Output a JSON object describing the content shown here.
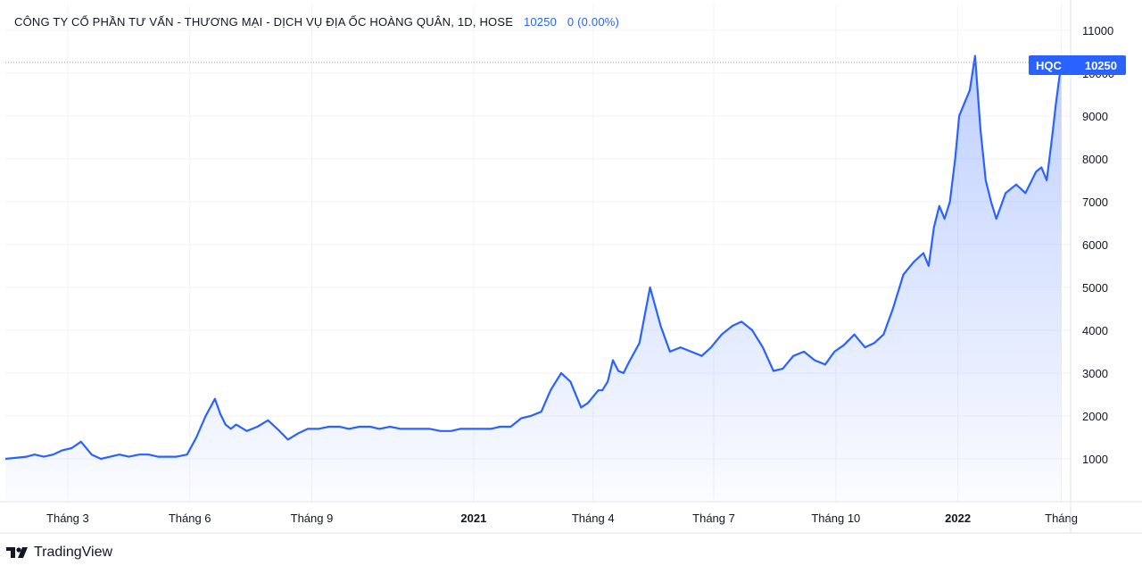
{
  "header": {
    "title": "CÔNG TY CỔ PHẦN TƯ VẤN - THƯƠNG MẠI - DỊCH VỤ ĐỊA ỐC HOÀNG QUÂN, 1D, HOSE",
    "last_price": "10250",
    "change": "0 (0.00%)"
  },
  "price_tag": {
    "symbol": "HQC",
    "value": "10250"
  },
  "footer": {
    "brand": "TradingView"
  },
  "colors": {
    "line": "#2962ff",
    "fill_top": "#2962ff",
    "grid": "#f0f3fa",
    "text": "#131722"
  },
  "chart_data": {
    "type": "area",
    "title": "CÔNG TY CỔ PHẦN TƯ VẤN - THƯƠNG MẠI - DỊCH VỤ ĐỊA ỐC HOÀNG QUÂN, 1D, HOSE",
    "ylim": [
      0,
      11600
    ],
    "yticks": [
      1000,
      2000,
      3000,
      4000,
      5000,
      6000,
      7000,
      8000,
      9000,
      10000,
      11000
    ],
    "xlim": [
      "2020-01-14",
      "2022-03-27"
    ],
    "xticks": [
      {
        "label": "Tháng 3",
        "date": "2020-03-01",
        "bold": false
      },
      {
        "label": "Tháng 6",
        "date": "2020-06-01",
        "bold": false
      },
      {
        "label": "Tháng 9",
        "date": "2020-09-01",
        "bold": false
      },
      {
        "label": "2021",
        "date": "2021-01-01",
        "bold": true
      },
      {
        "label": "Tháng 4",
        "date": "2021-04-01",
        "bold": false
      },
      {
        "label": "Tháng 7",
        "date": "2021-07-01",
        "bold": false
      },
      {
        "label": "Tháng 10",
        "date": "2021-10-01",
        "bold": false
      },
      {
        "label": "2022",
        "date": "2022-01-01",
        "bold": true
      },
      {
        "label": "Tháng",
        "date": "2022-03-20",
        "bold": false
      }
    ],
    "grid": true,
    "series": [
      {
        "x": [
          "2020-01-14",
          "2020-01-30",
          "2020-02-05",
          "2020-02-12",
          "2020-02-19",
          "2020-02-26",
          "2020-03-04",
          "2020-03-11",
          "2020-03-19",
          "2020-03-26",
          "2020-04-02",
          "2020-04-09",
          "2020-04-16",
          "2020-04-24",
          "2020-05-01",
          "2020-05-08",
          "2020-05-15",
          "2020-05-22",
          "2020-05-30",
          "2020-06-06",
          "2020-06-13",
          "2020-06-20",
          "2020-06-24",
          "2020-06-28",
          "2020-07-02",
          "2020-07-06",
          "2020-07-14",
          "2020-07-22",
          "2020-07-30",
          "2020-08-06",
          "2020-08-14",
          "2020-08-22",
          "2020-08-29",
          "2020-09-06",
          "2020-09-14",
          "2020-09-22",
          "2020-09-29",
          "2020-10-07",
          "2020-10-15",
          "2020-10-22",
          "2020-10-30",
          "2020-11-07",
          "2020-11-14",
          "2020-11-22",
          "2020-11-29",
          "2020-12-07",
          "2020-12-15",
          "2020-12-22",
          "2020-12-30",
          "2021-01-06",
          "2021-01-14",
          "2021-01-21",
          "2021-01-29",
          "2021-02-06",
          "2021-02-13",
          "2021-02-21",
          "2021-02-28",
          "2021-03-08",
          "2021-03-15",
          "2021-03-23",
          "2021-03-28",
          "2021-04-01",
          "2021-04-05",
          "2021-04-08",
          "2021-04-12",
          "2021-04-16",
          "2021-04-20",
          "2021-04-24",
          "2021-04-28",
          "2021-05-06",
          "2021-05-14",
          "2021-05-22",
          "2021-05-29",
          "2021-06-06",
          "2021-06-14",
          "2021-06-22",
          "2021-06-29",
          "2021-07-07",
          "2021-07-15",
          "2021-07-22",
          "2021-07-30",
          "2021-08-07",
          "2021-08-15",
          "2021-08-22",
          "2021-08-30",
          "2021-09-07",
          "2021-09-15",
          "2021-09-23",
          "2021-09-30",
          "2021-10-07",
          "2021-10-15",
          "2021-10-23",
          "2021-10-30",
          "2021-11-06",
          "2021-11-13",
          "2021-11-21",
          "2021-11-29",
          "2021-12-06",
          "2021-12-10",
          "2021-12-14",
          "2021-12-18",
          "2021-12-22",
          "2021-12-26",
          "2021-12-30",
          "2022-01-02",
          "2022-01-06",
          "2022-01-10",
          "2022-01-14",
          "2022-01-18",
          "2022-01-22",
          "2022-01-26",
          "2022-01-30",
          "2022-02-06",
          "2022-02-14",
          "2022-02-21",
          "2022-03-01",
          "2022-03-05",
          "2022-03-09",
          "2022-03-13",
          "2022-03-16",
          "2022-03-20"
        ],
        "values": [
          1000,
          1050,
          1100,
          1050,
          1100,
          1200,
          1250,
          1400,
          1100,
          1000,
          1050,
          1100,
          1050,
          1100,
          1100,
          1050,
          1050,
          1050,
          1100,
          1500,
          2000,
          2400,
          2050,
          1800,
          1700,
          1800,
          1650,
          1750,
          1900,
          1700,
          1450,
          1600,
          1700,
          1700,
          1750,
          1750,
          1700,
          1750,
          1750,
          1700,
          1750,
          1700,
          1700,
          1700,
          1700,
          1650,
          1650,
          1700,
          1700,
          1700,
          1700,
          1750,
          1750,
          1950,
          2000,
          2100,
          2600,
          3000,
          2800,
          2200,
          2300,
          2450,
          2600,
          2600,
          2800,
          3300,
          3050,
          3000,
          3250,
          3700,
          5000,
          4100,
          3500,
          3600,
          3500,
          3400,
          3600,
          3900,
          4100,
          4200,
          4000,
          3600,
          3050,
          3100,
          3400,
          3500,
          3300,
          3200,
          3500,
          3650,
          3900,
          3600,
          3700,
          3900,
          4500,
          5300,
          5600,
          5800,
          5500,
          6400,
          6900,
          6600,
          7000,
          8000,
          9000,
          9300,
          9600,
          10400,
          8700,
          7500,
          7000,
          6600,
          7200,
          7400,
          7200,
          7700,
          7800,
          7500,
          8500,
          9300,
          10250
        ]
      }
    ]
  }
}
